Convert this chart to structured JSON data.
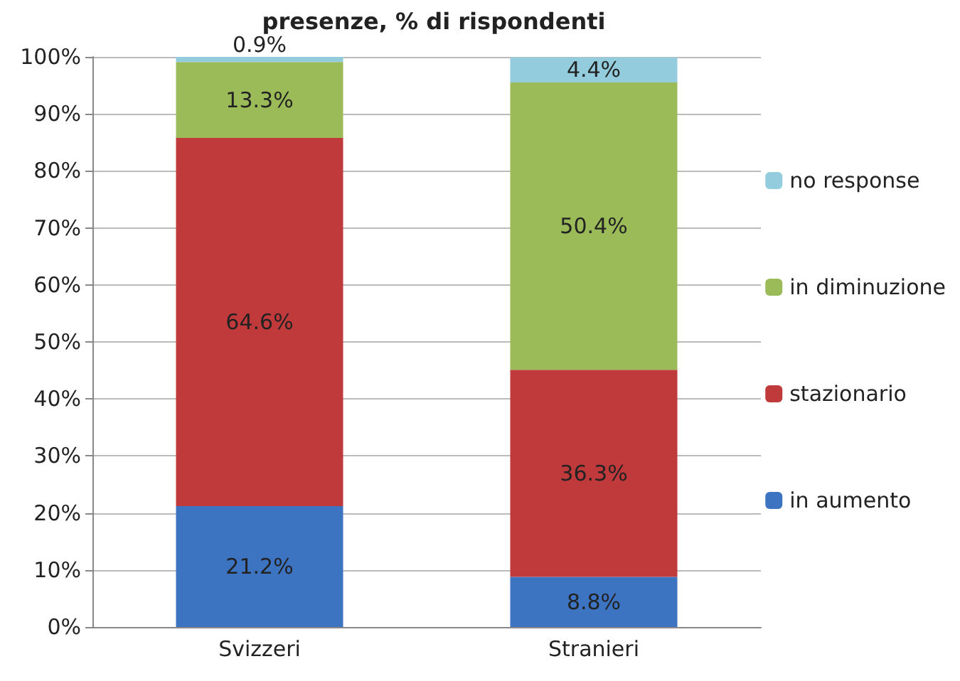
{
  "chart_data": {
    "type": "bar",
    "title": "presenze, % di rispondenti",
    "stacked": true,
    "categories": [
      "Svizzeri",
      "Stranieri"
    ],
    "series": [
      {
        "name": "in aumento",
        "color": "#3d74c2",
        "values": [
          21.2,
          8.8
        ],
        "value_labels": [
          "21.2%",
          "8.8%"
        ]
      },
      {
        "name": "stazionario",
        "color": "#c0393b",
        "values": [
          64.6,
          36.3
        ],
        "value_labels": [
          "64.6%",
          "36.3%"
        ]
      },
      {
        "name": "in diminuzione",
        "color": "#9bbb59",
        "values": [
          13.3,
          50.4
        ],
        "value_labels": [
          "13.3%",
          "50.4%"
        ]
      },
      {
        "name": "no response",
        "color": "#93cddd",
        "values": [
          0.9,
          4.4
        ],
        "value_labels": [
          "0.9%",
          "4.4%"
        ]
      }
    ],
    "ylim": [
      0,
      100
    ],
    "yticks": [
      {
        "value": 0,
        "label": "0%"
      },
      {
        "value": 10,
        "label": "10%"
      },
      {
        "value": 20,
        "label": "20%"
      },
      {
        "value": 30,
        "label": "30%"
      },
      {
        "value": 40,
        "label": "40%"
      },
      {
        "value": 50,
        "label": "50%"
      },
      {
        "value": 60,
        "label": "60%"
      },
      {
        "value": 70,
        "label": "70%"
      },
      {
        "value": 80,
        "label": "80%"
      },
      {
        "value": 90,
        "label": "90%"
      },
      {
        "value": 100,
        "label": "100%"
      }
    ],
    "grid": "y",
    "legend": "right"
  }
}
